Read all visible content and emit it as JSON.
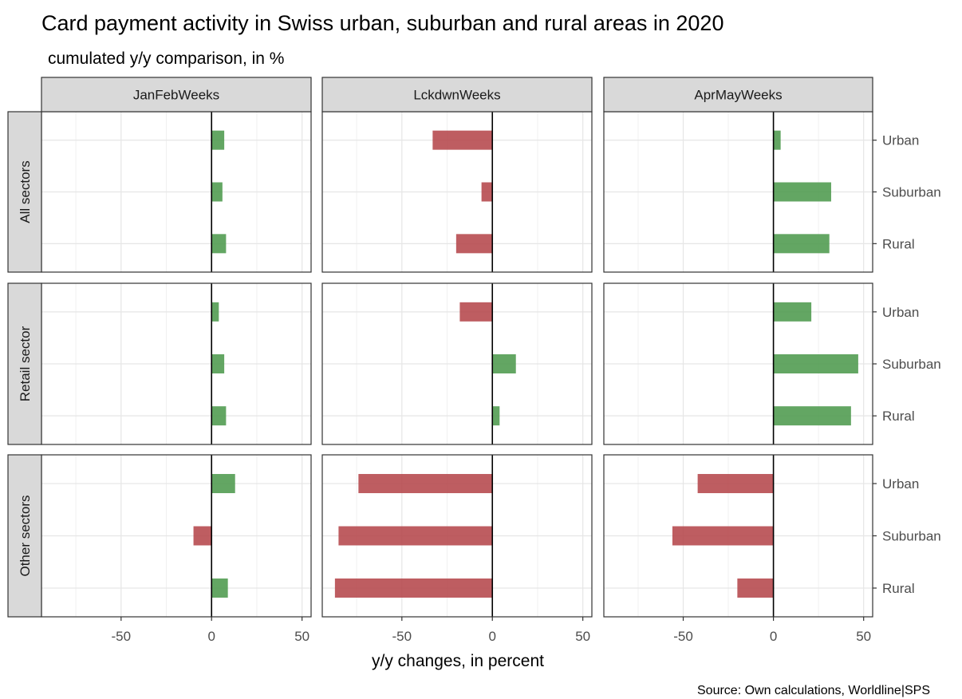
{
  "chart_data": {
    "type": "bar",
    "orientation": "horizontal",
    "title": "Card payment activity in Swiss urban, suburban and rural areas in 2020",
    "subtitle": "cumulated y/y comparison, in %",
    "xlabel": "y/y changes, in percent",
    "caption": "Source: Own calculations, Worldline|SPS",
    "columns": [
      "JanFebWeeks",
      "LckdwnWeeks",
      "AprMayWeeks"
    ],
    "rows": [
      "All sectors",
      "Retail sector",
      "Other sectors"
    ],
    "categories": [
      "Urban",
      "Suburban",
      "Rural"
    ],
    "xlim": [
      -94,
      55
    ],
    "xticks": [
      -50,
      0,
      50
    ],
    "xtick_labels": [
      "-50",
      "0",
      "50"
    ],
    "grid": true,
    "colors": {
      "positive": "#4d9a4d",
      "negative": "#b5474b"
    },
    "panels": [
      {
        "row": "All sectors",
        "column": "JanFebWeeks",
        "values": [
          7,
          6,
          8
        ]
      },
      {
        "row": "All sectors",
        "column": "LckdwnWeeks",
        "values": [
          -33,
          -6,
          -20
        ]
      },
      {
        "row": "All sectors",
        "column": "AprMayWeeks",
        "values": [
          4,
          32,
          31
        ]
      },
      {
        "row": "Retail sector",
        "column": "JanFebWeeks",
        "values": [
          4,
          7,
          8
        ]
      },
      {
        "row": "Retail sector",
        "column": "LckdwnWeeks",
        "values": [
          -18,
          13,
          4
        ]
      },
      {
        "row": "Retail sector",
        "column": "AprMayWeeks",
        "values": [
          21,
          47,
          43
        ]
      },
      {
        "row": "Other sectors",
        "column": "JanFebWeeks",
        "values": [
          13,
          -10,
          9
        ]
      },
      {
        "row": "Other sectors",
        "column": "LckdwnWeeks",
        "values": [
          -74,
          -85,
          -87
        ]
      },
      {
        "row": "Other sectors",
        "column": "AprMayWeeks",
        "values": [
          -42,
          -56,
          -20
        ]
      }
    ]
  }
}
